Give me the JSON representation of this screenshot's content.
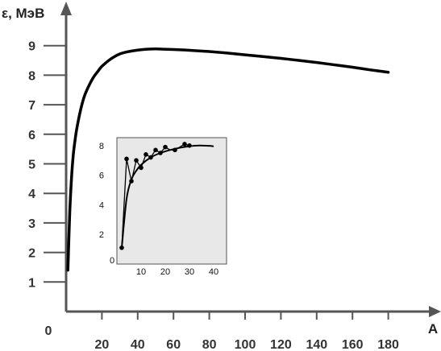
{
  "chart_data": [
    {
      "type": "line",
      "ylabel": "ε, МэВ",
      "xlabel": "А",
      "origin_label": "0",
      "xlim": [
        0,
        200
      ],
      "ylim": [
        0,
        10
      ],
      "x_ticks": [
        20,
        40,
        60,
        80,
        100,
        120,
        140,
        160,
        180
      ],
      "y_ticks": [
        1,
        2,
        3,
        4,
        5,
        6,
        7,
        8,
        9
      ],
      "grid": false,
      "series": [
        {
          "x": [
            1,
            2,
            3,
            4,
            5,
            6,
            8,
            10,
            12,
            15,
            18,
            20,
            25,
            30,
            35,
            40,
            45,
            50,
            55,
            60,
            70,
            80,
            90,
            100,
            110,
            120,
            130,
            140,
            150,
            160,
            170,
            180
          ],
          "y": [
            1.4,
            3.3,
            4.5,
            5.3,
            5.8,
            6.2,
            6.8,
            7.25,
            7.55,
            7.9,
            8.15,
            8.3,
            8.55,
            8.72,
            8.8,
            8.85,
            8.88,
            8.89,
            8.88,
            8.87,
            8.84,
            8.8,
            8.75,
            8.69,
            8.63,
            8.57,
            8.5,
            8.43,
            8.35,
            8.27,
            8.18,
            8.1
          ]
        }
      ],
      "colors": {
        "line": "#000000",
        "axis": "#555555",
        "tick_text": "#333333"
      }
    },
    {
      "type": "line",
      "xlim": [
        0,
        42
      ],
      "ylim": [
        0,
        9
      ],
      "origin_label": "0",
      "x_ticks": [
        10,
        20,
        30,
        40
      ],
      "y_ticks": [
        2,
        4,
        6,
        8
      ],
      "grid": false,
      "series": [
        {
          "x": [
            2,
            4,
            6,
            8,
            10,
            14,
            18,
            22,
            26,
            30,
            34,
            38,
            40
          ],
          "y": [
            1.1,
            4.4,
            5.7,
            6.3,
            6.7,
            7.2,
            7.5,
            7.7,
            7.85,
            7.95,
            8.0,
            7.98,
            7.95
          ]
        },
        {
          "x": [
            2,
            4,
            6,
            8,
            10,
            12,
            14,
            16,
            18,
            20,
            22,
            24,
            26,
            28,
            30
          ],
          "y": [
            1.1,
            7.1,
            5.6,
            7.0,
            6.5,
            7.4,
            7.2,
            7.7,
            7.5,
            7.9,
            7.7,
            7.7,
            7.9,
            8.1,
            8.0
          ]
        }
      ],
      "colors": {
        "background": "#e8e8e8",
        "border": "#555555",
        "line": "#000000",
        "marker": "#000000"
      }
    }
  ]
}
